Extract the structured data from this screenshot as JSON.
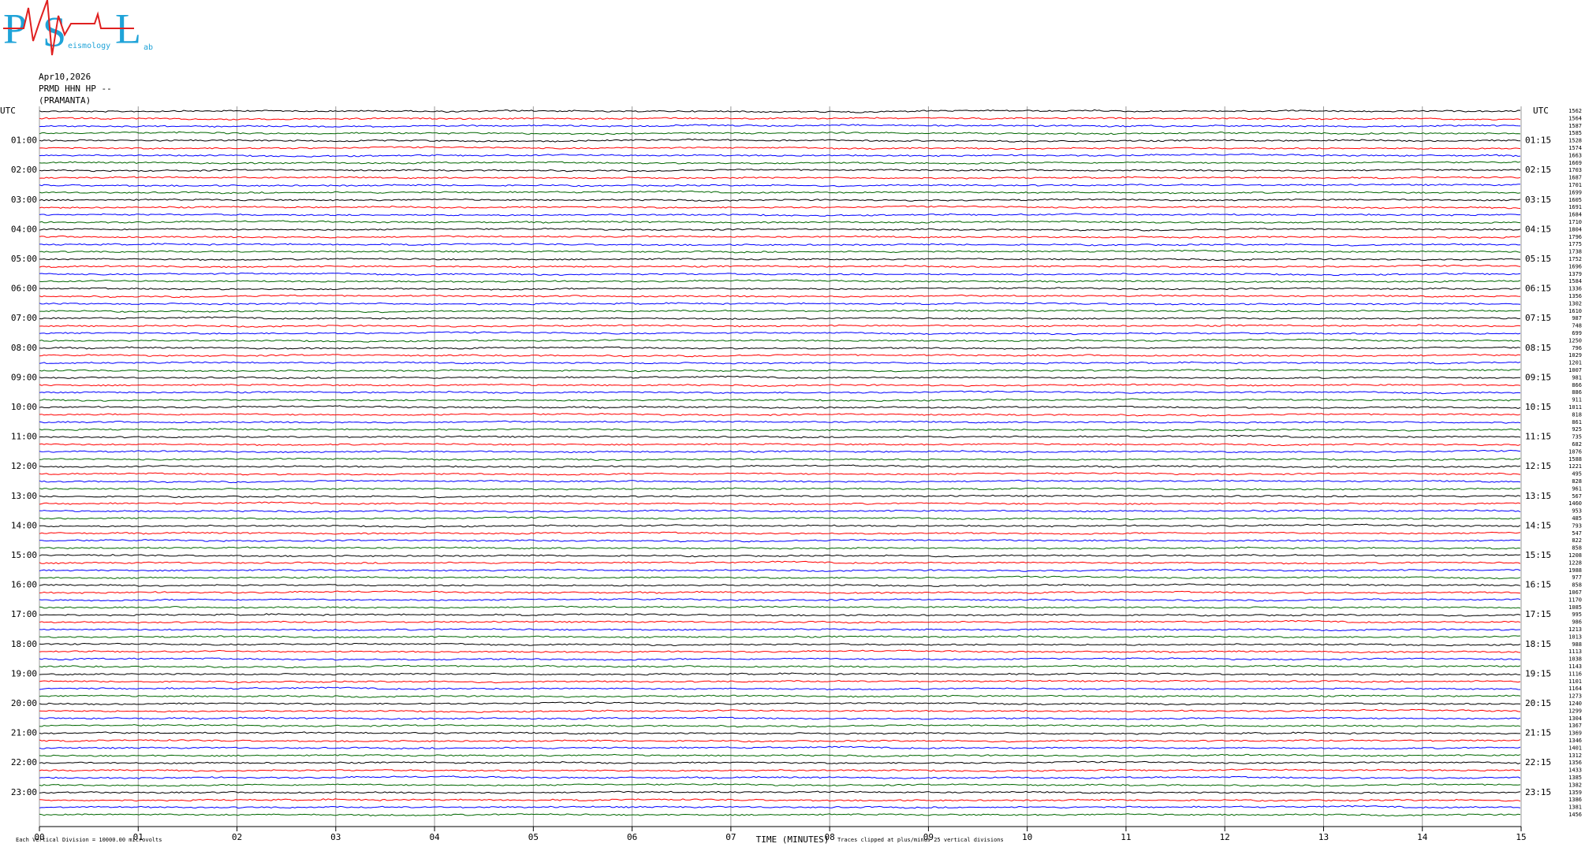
{
  "header": {
    "logo": [
      "P",
      "S",
      "L"
    ],
    "logo_words": [
      "eismology",
      "ab"
    ],
    "date": "Apr10,2026",
    "station": "PRMD HHN HP --",
    "site": "(PRAMANTA)"
  },
  "chart_data": {
    "type": "helicorder",
    "xlabel": "TIME (MINUTES)",
    "scale_note": "Each Vertical Division = 10000.00 microvolts",
    "clip_note": "Traces clipped at plus/minus 25 vertical divisions",
    "xlim": [
      0,
      15
    ],
    "xticks": [
      {
        "value": 0,
        "label": "00"
      },
      {
        "value": 1,
        "label": "01"
      },
      {
        "value": 2,
        "label": "02"
      },
      {
        "value": 3,
        "label": "03"
      },
      {
        "value": 4,
        "label": "04"
      },
      {
        "value": 5,
        "label": "05"
      },
      {
        "value": 6,
        "label": "06"
      },
      {
        "value": 7,
        "label": "07"
      },
      {
        "value": 8,
        "label": "08"
      },
      {
        "value": 9,
        "label": "09"
      },
      10,
      11,
      12,
      13,
      14,
      15
    ],
    "left_title": "UTC",
    "right_title": "UTC",
    "left_labels": [
      "01:00",
      "02:00",
      "03:00",
      "04:00",
      "05:00",
      "06:00",
      "07:00",
      "08:00",
      "09:00",
      "10:00",
      "11:00",
      "12:00",
      "13:00",
      "14:00",
      "15:00",
      "16:00",
      "17:00",
      "18:00",
      "19:00",
      "20:00",
      "21:00",
      "22:00",
      "23:00"
    ],
    "right_labels": [
      "01:15",
      "02:15",
      "03:15",
      "04:15",
      "05:15",
      "06:15",
      "07:15",
      "08:15",
      "09:15",
      "10:15",
      "11:15",
      "12:15",
      "13:15",
      "14:15",
      "15:15",
      "16:15",
      "17:15",
      "18:15",
      "19:15",
      "20:15",
      "21:15",
      "22:15",
      "23:15"
    ],
    "colors": [
      "#000000",
      "#ff0000",
      "#0000ff",
      "#006600"
    ],
    "trace_values": [
      1562,
      1564,
      1587,
      1585,
      1528,
      1574,
      1663,
      1669,
      1703,
      1687,
      1701,
      1699,
      1605,
      1691,
      1684,
      1710,
      1804,
      1796,
      1775,
      1738,
      1752,
      1696,
      1379,
      1584,
      1336,
      1356,
      1302,
      1610,
      987,
      748,
      699,
      1250,
      796,
      1029,
      1201,
      1007,
      981,
      866,
      886,
      911,
      1011,
      818,
      861,
      925,
      735,
      682,
      1076,
      1588,
      1221,
      495,
      828,
      961,
      567,
      1460,
      953,
      485,
      793,
      547,
      822,
      858,
      1208,
      1228,
      1988,
      977,
      858,
      1067,
      1170,
      1085,
      995,
      986,
      1213,
      1013,
      988,
      1113,
      1038,
      1143,
      1116,
      1101,
      1164,
      1273,
      1240,
      1299,
      1304,
      1367,
      1369,
      1346,
      1401,
      1312,
      1356,
      1433,
      1385,
      1382,
      1359,
      1386,
      1381,
      1456
    ]
  }
}
